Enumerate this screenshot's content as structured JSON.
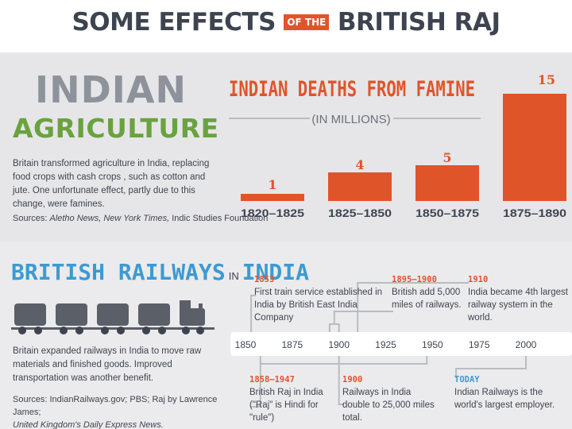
{
  "header": {
    "part1": "SOME EFFECTS",
    "part2": "OF THE",
    "part3": "BRITISH RAJ"
  },
  "agriculture": {
    "title_line1": "INDIAN",
    "title_line2": "AGRICULTURE",
    "description": "Britain transformed agriculture in India, replacing food crops with cash crops , such as cotton and jute. One unfortunate effect, partly due to this change, were famines.",
    "sources_label": "Sources: ",
    "sources_italic": "Aletho News, New York Times,",
    "sources_rest": " Indic Studies Foundation"
  },
  "chart_data": {
    "type": "bar",
    "title": "INDIAN DEATHS FROM FAMINE",
    "subtitle": "(IN MILLIONS)",
    "categories": [
      "1820–1825",
      "1825–1850",
      "1850–1875",
      "1875–1890"
    ],
    "values": [
      1,
      4,
      5,
      15
    ],
    "value_labels": [
      "1",
      "4",
      "5",
      "15"
    ],
    "ylim": [
      0,
      15
    ],
    "color": "#e0542a"
  },
  "railways": {
    "title_part1": "BRITISH RAILWAYS",
    "title_part2": "IN",
    "title_part3": "INDIA",
    "description": "Britain expanded railways in India to move raw materials and finished goods. Improved transportation was another benefit.",
    "sources_line1": "Sources: IndianRailways.gov; PBS; Raj by Lawrence James;",
    "sources_line2": "United Kingdom's Daily Express News."
  },
  "timeline": {
    "ticks": [
      "1850",
      "1875",
      "1900",
      "1925",
      "1950",
      "1975",
      "2000"
    ],
    "tick_values": [
      1850,
      1875,
      1900,
      1925,
      1950,
      1975,
      2000
    ],
    "range": [
      1850,
      2000
    ],
    "events": [
      {
        "year_label": "1853",
        "text": "First train service established in India by British East India Company",
        "position": "top",
        "start": 1853,
        "end": 1853
      },
      {
        "year_label": "1895–1900",
        "text": "British add 5,000 miles of railways.",
        "position": "top",
        "start": 1895,
        "end": 1900
      },
      {
        "year_label": "1910",
        "text": "India became 4th largest railway system in the world.",
        "position": "top",
        "start": 1910,
        "end": 1910
      },
      {
        "year_label": "1858–1947",
        "text": "British Raj in India (\"Raj\" is Hindi for \"rule\")",
        "position": "bottom",
        "start": 1858,
        "end": 1947
      },
      {
        "year_label": "1900",
        "text": "Railways in India double to 25,000 miles total.",
        "position": "bottom",
        "start": 1900,
        "end": 1900
      },
      {
        "year_label": "TODAY",
        "text": "Indian Railways is the world's largest employer.",
        "position": "bottom",
        "start": 2000,
        "end": 2000
      }
    ]
  },
  "colors": {
    "orange": "#e0542a",
    "green": "#6aa240",
    "blue": "#3d9ad1",
    "dark": "#3d4450",
    "gray": "#8e939b",
    "train": "#5a5f68"
  }
}
